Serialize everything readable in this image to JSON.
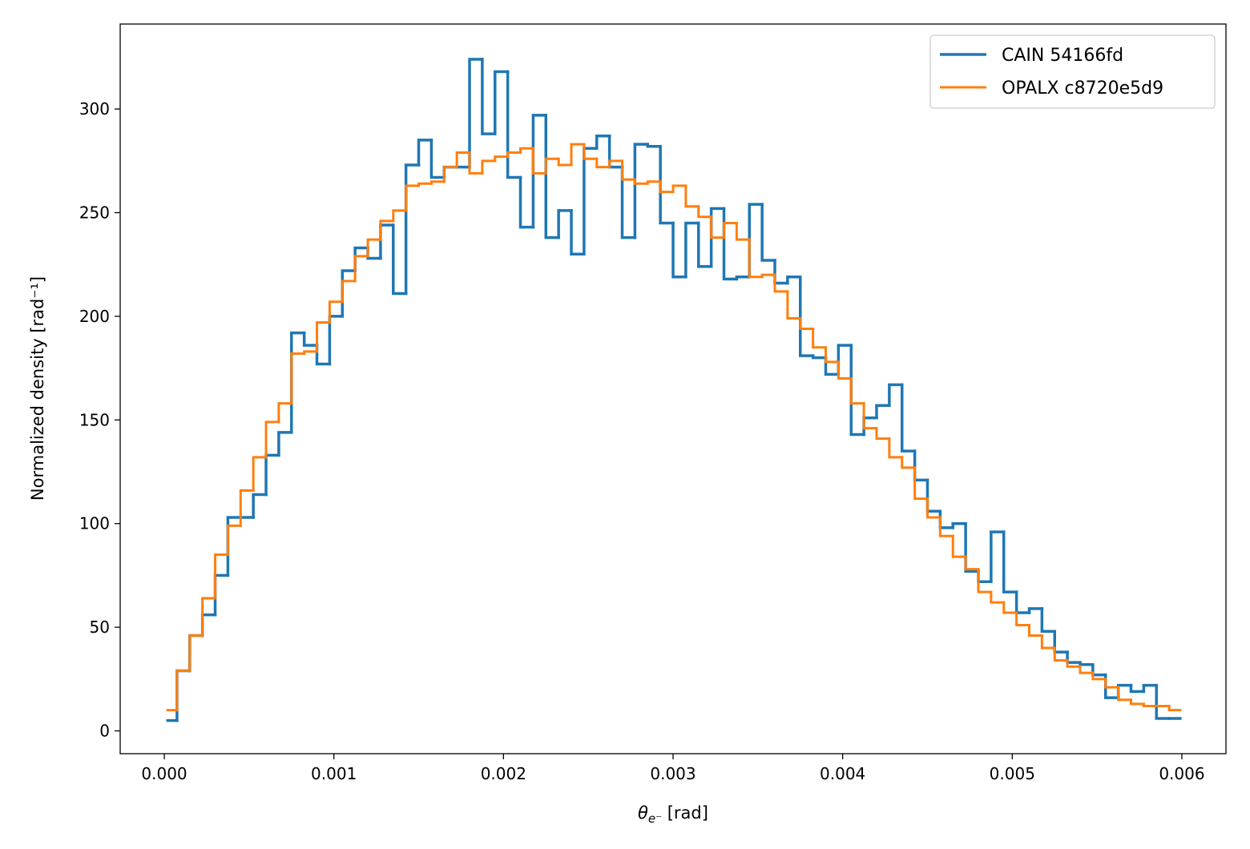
{
  "chart_data": {
    "type": "line",
    "style": "step-histogram",
    "title": "",
    "xlabel": {
      "symbol": "θ",
      "subscript": "e⁻",
      "unit": " [rad]"
    },
    "ylabel": "Normalized density [rad⁻¹]",
    "xlim": [
      -0.00026,
      0.00626
    ],
    "ylim": [
      -11,
      341
    ],
    "x_ticks": [
      0.0,
      0.001,
      0.002,
      0.003,
      0.004,
      0.005,
      0.006
    ],
    "x_tick_labels": [
      "0.000",
      "0.001",
      "0.002",
      "0.003",
      "0.004",
      "0.005",
      "0.006"
    ],
    "y_ticks": [
      0,
      50,
      100,
      150,
      200,
      250,
      300
    ],
    "y_tick_labels": [
      "0",
      "50",
      "100",
      "150",
      "200",
      "250",
      "300"
    ],
    "grid": false,
    "legend_position": "top-right",
    "bins": {
      "x_min": 2e-05,
      "x_max": 0.00599,
      "bin_width": 7.5e-05,
      "count": 80
    },
    "series": [
      {
        "name": "CAIN 54166fd",
        "color": "#1f77b4",
        "values": [
          5,
          29,
          46,
          56,
          75,
          103,
          103,
          114,
          133,
          144,
          192,
          186,
          177,
          200,
          222,
          233,
          228,
          244,
          211,
          273,
          285,
          267,
          272,
          272,
          324,
          288,
          318,
          267,
          243,
          297,
          238,
          251,
          230,
          281,
          287,
          272,
          238,
          283,
          282,
          245,
          219,
          245,
          224,
          252,
          218,
          219,
          254,
          227,
          216,
          219,
          181,
          180,
          172,
          186,
          143,
          151,
          157,
          167,
          135,
          121,
          106,
          98,
          100,
          77,
          72,
          96,
          67,
          57,
          59,
          48,
          38,
          33,
          32,
          27,
          16,
          22,
          19,
          22,
          6,
          6
        ]
      },
      {
        "name": "OPALX c8720e5d9",
        "color": "#ff7f0e",
        "values": [
          10,
          29,
          46,
          64,
          85,
          99,
          116,
          132,
          149,
          158,
          182,
          183,
          197,
          207,
          217,
          229,
          237,
          246,
          251,
          263,
          264,
          265,
          272,
          279,
          269,
          275,
          277,
          279,
          281,
          269,
          276,
          273,
          283,
          276,
          272,
          275,
          266,
          264,
          265,
          260,
          263,
          253,
          248,
          238,
          245,
          237,
          219,
          220,
          212,
          199,
          194,
          185,
          178,
          170,
          158,
          146,
          141,
          132,
          127,
          112,
          103,
          94,
          84,
          78,
          67,
          62,
          57,
          51,
          46,
          40,
          34,
          31,
          28,
          25,
          21,
          15,
          13,
          12,
          12,
          10
        ]
      }
    ]
  }
}
